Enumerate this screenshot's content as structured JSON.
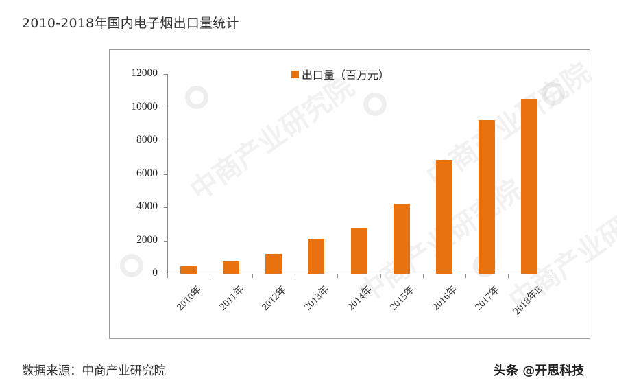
{
  "title": "2010-2018年国内电子烟出口量统计",
  "footer": {
    "source": "数据来源：中商产业研究院",
    "credit": "头条 @开思科技"
  },
  "watermark": {
    "text": "中商产业研究院"
  },
  "colors": {
    "bar": "#e8720f",
    "axis": "#8a8a8a",
    "frame": "#9a9a9a"
  },
  "chart_data": {
    "type": "bar",
    "title": "2010-2018年国内电子烟出口量统计",
    "xlabel": "",
    "ylabel": "",
    "categories": [
      "2010年",
      "2011年",
      "2012年",
      "2013年",
      "2014年",
      "2015年",
      "2016年",
      "2017年",
      "2018年E"
    ],
    "series": [
      {
        "name": "出口量（百万元）",
        "values": [
          450,
          750,
          1200,
          2100,
          2750,
          4200,
          6850,
          9250,
          10500
        ]
      }
    ],
    "yticks": [
      "0",
      "2000",
      "4000",
      "6000",
      "8000",
      "10000",
      "12000"
    ],
    "ylim": [
      0,
      12000
    ],
    "grid": false,
    "legend_position": "top-center",
    "source_note": "数据来源：中商产业研究院"
  }
}
